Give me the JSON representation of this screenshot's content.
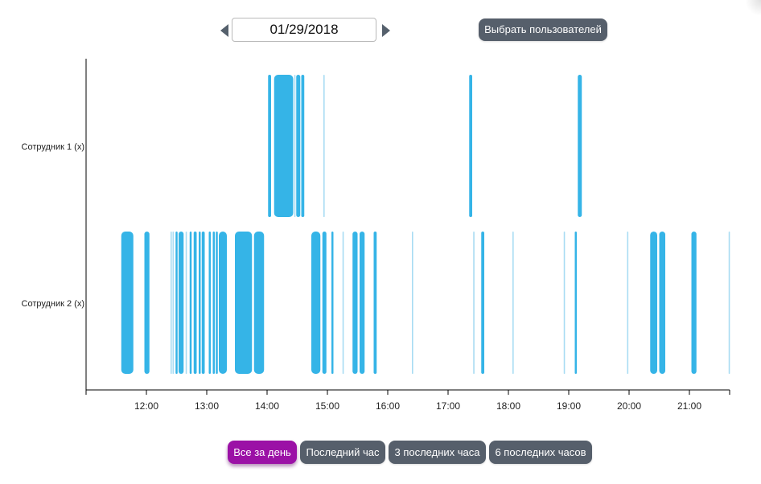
{
  "date_nav": {
    "value": "01/29/2018",
    "prev_icon": "triangle-left-icon",
    "next_icon": "triangle-right-icon"
  },
  "select_users_label": "Выбрать пользователей",
  "range_buttons": [
    {
      "label": "Все за день",
      "active": true
    },
    {
      "label": "Последний час",
      "active": false
    },
    {
      "label": "3 последних часа",
      "active": false
    },
    {
      "label": "6 последних часов",
      "active": false
    }
  ],
  "colors": {
    "bar": "#35b4e7",
    "bar_light": "#a8dcf3",
    "axis": "#000000",
    "accent": "#9b11a6",
    "button": "#565f6b"
  },
  "chart_data": {
    "type": "timeline",
    "title": "",
    "xlabel": "",
    "ylabel": "",
    "x_range": [
      "11:00",
      "21:40"
    ],
    "x_ticks": [
      "12:00",
      "13:00",
      "14:00",
      "15:00",
      "16:00",
      "17:00",
      "18:00",
      "19:00",
      "20:00",
      "21:00"
    ],
    "grid": false,
    "series": [
      {
        "name": "Сотрудник 1 (x)",
        "intervals": [
          [
            "14:01",
            "14:04"
          ],
          [
            "14:07",
            "14:26"
          ],
          [
            "14:27",
            "14:28"
          ],
          [
            "14:29",
            "14:33"
          ],
          [
            "14:34",
            "14:37"
          ],
          [
            "14:56",
            "14:57"
          ],
          [
            "17:21",
            "17:24"
          ],
          [
            "19:09",
            "19:13"
          ]
        ]
      },
      {
        "name": "Сотрудник 2 (x)",
        "intervals": [
          [
            "11:35",
            "11:47"
          ],
          [
            "11:58",
            "12:03"
          ],
          [
            "12:24",
            "12:25"
          ],
          [
            "12:26",
            "12:27"
          ],
          [
            "12:29",
            "12:31"
          ],
          [
            "12:32",
            "12:37"
          ],
          [
            "12:39",
            "12:40"
          ],
          [
            "12:43",
            "12:45"
          ],
          [
            "12:47",
            "12:50"
          ],
          [
            "12:52",
            "12:54"
          ],
          [
            "12:55",
            "12:58"
          ],
          [
            "13:02",
            "13:04"
          ],
          [
            "13:06",
            "13:08"
          ],
          [
            "13:09",
            "13:11"
          ],
          [
            "13:12",
            "13:20"
          ],
          [
            "13:28",
            "13:45"
          ],
          [
            "13:47",
            "13:57"
          ],
          [
            "14:44",
            "14:53"
          ],
          [
            "14:55",
            "14:59"
          ],
          [
            "15:04",
            "15:06"
          ],
          [
            "15:15",
            "15:16"
          ],
          [
            "15:25",
            "15:30"
          ],
          [
            "15:32",
            "15:37"
          ],
          [
            "15:46",
            "15:49"
          ],
          [
            "16:24",
            "16:25"
          ],
          [
            "17:25",
            "17:26"
          ],
          [
            "17:33",
            "17:36"
          ],
          [
            "18:04",
            "18:05"
          ],
          [
            "18:55",
            "18:56"
          ],
          [
            "19:06",
            "19:08"
          ],
          [
            "19:58",
            "19:59"
          ],
          [
            "20:21",
            "20:28"
          ],
          [
            "20:30",
            "20:36"
          ],
          [
            "21:02",
            "21:07"
          ],
          [
            "21:39",
            "21:40"
          ]
        ]
      }
    ]
  }
}
